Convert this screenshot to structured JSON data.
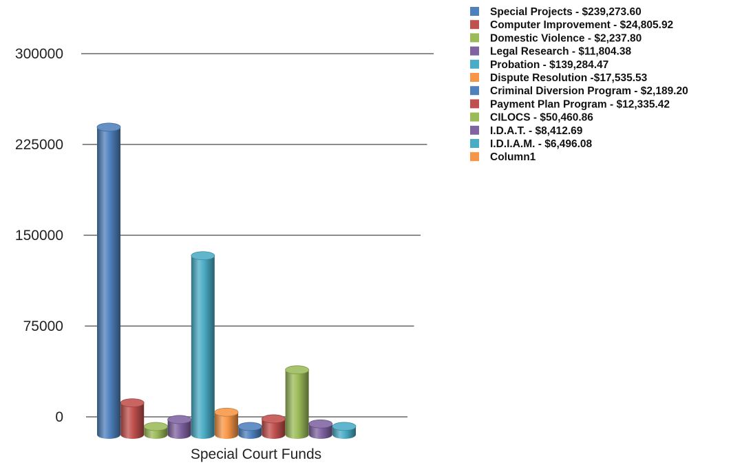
{
  "chart_data": {
    "type": "bar",
    "style": "3d-cylinder",
    "categories": [
      "Special Court Funds"
    ],
    "ylim": [
      0,
      300000
    ],
    "y_ticks": [
      0,
      75000,
      150000,
      225000,
      300000
    ],
    "y_tick_labels": [
      "0",
      "75000",
      "150000",
      "225000",
      "300000"
    ],
    "grid": true,
    "legend_position": "top-right",
    "series": [
      {
        "name": "Special Projects  - $239,273.60",
        "values": [
          239273.6
        ],
        "color": "#4f81bd"
      },
      {
        "name": "Computer Improvement - $24,805.92",
        "values": [
          24805.92
        ],
        "color": "#c0504d"
      },
      {
        "name": "Domestic Violence - $2,237.80",
        "values": [
          2237.8
        ],
        "color": "#9bbb59"
      },
      {
        "name": "Legal Research - $11,804.38",
        "values": [
          11804.38
        ],
        "color": "#8064a2"
      },
      {
        "name": "Probation - $139,284.47",
        "values": [
          139284.47
        ],
        "color": "#4bacc6"
      },
      {
        "name": "Dispute Resolution -$17,535.53",
        "values": [
          17535.53
        ],
        "color": "#f79646"
      },
      {
        "name": "Criminal Diversion Program - $2,189.20",
        "values": [
          2189.2
        ],
        "color": "#4f81bd"
      },
      {
        "name": "Payment Plan Program - $12,335.42",
        "values": [
          12335.42
        ],
        "color": "#c0504d"
      },
      {
        "name": "CILOCS - $50,460.86",
        "values": [
          50460.86
        ],
        "color": "#9bbb59"
      },
      {
        "name": "I.D.A.T. - $8,412.69",
        "values": [
          8412.69
        ],
        "color": "#8064a2"
      },
      {
        "name": "I.D.I.A.M. - $6,496.08",
        "values": [
          6496.08
        ],
        "color": "#4bacc6"
      },
      {
        "name": "Column1",
        "values": [
          null
        ],
        "color": "#f79646"
      }
    ]
  }
}
